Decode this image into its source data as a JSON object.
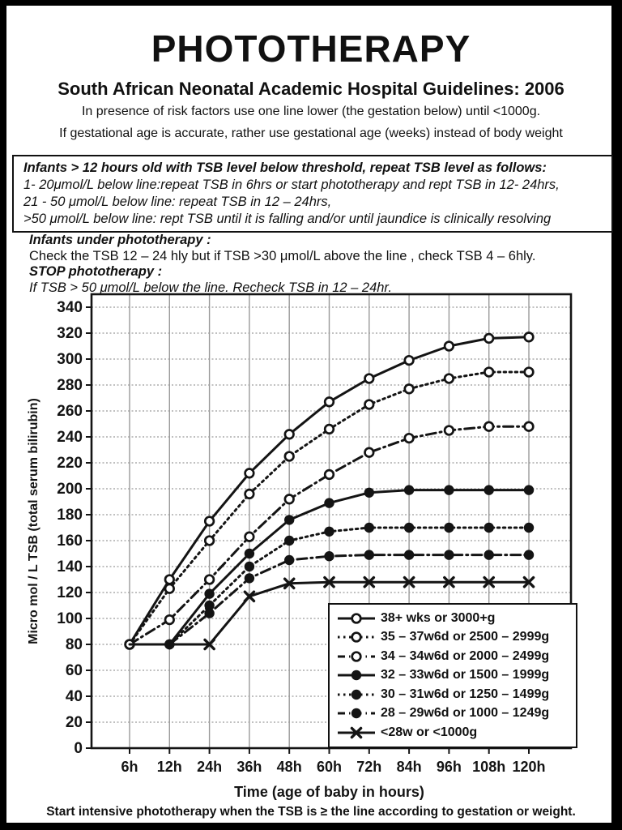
{
  "page": {
    "title": "PHOTOTHERAPY",
    "subtitle": "South African Neonatal Academic Hospital Guidelines: 2006",
    "note_risk": "In presence of risk factors use one line lower (the gestation below)  until <1000g.",
    "note_gestation": "If gestational age is accurate, rather use gestational age (weeks) instead of body weight",
    "repeat_box": {
      "heading": "Infants > 12 hours old with TSB level below threshold, repeat TSB level as follows:",
      "line1": "1- 20μmol/L below line:repeat TSB in 6hrs or start phototherapy and rept TSB in 12- 24hrs,",
      "line2": "21 - 50 μmol/L below line: repeat TSB in 12 – 24hrs,",
      "line3": ">50 μmol/L below line: rept TSB until it is falling and/or until jaundice is clinically resolving"
    },
    "under_phototherapy": {
      "heading": "Infants under phototherapy :",
      "check_line": "Check the TSB 12 – 24 hly but if TSB >30 μmol/L  above the line , check TSB 4 – 6hly.",
      "stop_heading": "STOP phototherapy :",
      "stop_line": "If TSB > 50 μmol/L below the line. Recheck TSB in 12 – 24hr."
    },
    "footer": "Start intensive phototherapy when the TSB is ≥ the line according to gestation or weight."
  },
  "chart_data": {
    "type": "line",
    "title": "",
    "xlabel": "Time (age of baby in hours)",
    "ylabel": "Micro mol / L TSB (total serum bilirubin)",
    "categories": [
      "6h",
      "12h",
      "24h",
      "36h",
      "48h",
      "60h",
      "72h",
      "84h",
      "96h",
      "108h",
      "120h"
    ],
    "x_hours": [
      6,
      12,
      24,
      36,
      48,
      60,
      72,
      84,
      96,
      108,
      120
    ],
    "ylim": [
      0,
      350
    ],
    "ytick_step": 20,
    "ytick_max": 340,
    "grid": true,
    "legend_position": "lower right",
    "series": [
      {
        "name": "38+ wks or 3000+g",
        "line": "solid",
        "marker": "open-circle",
        "marker_from": 0,
        "values": [
          80,
          130,
          175,
          212,
          242,
          267,
          285,
          299,
          310,
          316,
          317
        ]
      },
      {
        "name": "35 – 37w6d or 2500 – 2999g",
        "line": "dotted",
        "marker": "open-circle",
        "marker_from": 0,
        "values": [
          80,
          123,
          160,
          196,
          225,
          246,
          265,
          277,
          285,
          290,
          290
        ]
      },
      {
        "name": "34 – 34w6d or 2000 – 2499g",
        "line": "dashed",
        "marker": "open-circle",
        "marker_from": 0,
        "values": [
          80,
          99,
          130,
          163,
          192,
          211,
          228,
          239,
          245,
          248,
          248
        ]
      },
      {
        "name": "32 – 33w6d or 1500 – 1999g",
        "line": "solid",
        "marker": "filled-circle",
        "marker_from": 1,
        "values": [
          null,
          80,
          119,
          150,
          176,
          189,
          197,
          199,
          199,
          199,
          199
        ]
      },
      {
        "name": "30 – 31w6d or 1250 – 1499g",
        "line": "dotted",
        "marker": "filled-circle",
        "marker_from": 1,
        "values": [
          null,
          80,
          110,
          140,
          160,
          167,
          170,
          170,
          170,
          170,
          170
        ]
      },
      {
        "name": "28 – 29w6d or 1000 – 1249g",
        "line": "dashed",
        "marker": "filled-circle",
        "marker_from": 1,
        "values": [
          null,
          80,
          104,
          131,
          145,
          148,
          149,
          149,
          149,
          149,
          149
        ]
      },
      {
        "name": "<28w or <1000g",
        "line": "solid",
        "marker": "x",
        "marker_from": 2,
        "values": [
          80,
          80,
          80,
          117,
          127,
          128,
          128,
          128,
          128,
          128,
          128
        ]
      }
    ],
    "colors": {
      "ink": "#141414",
      "grid": "#9a9a9a",
      "background": "#ffffff"
    }
  }
}
